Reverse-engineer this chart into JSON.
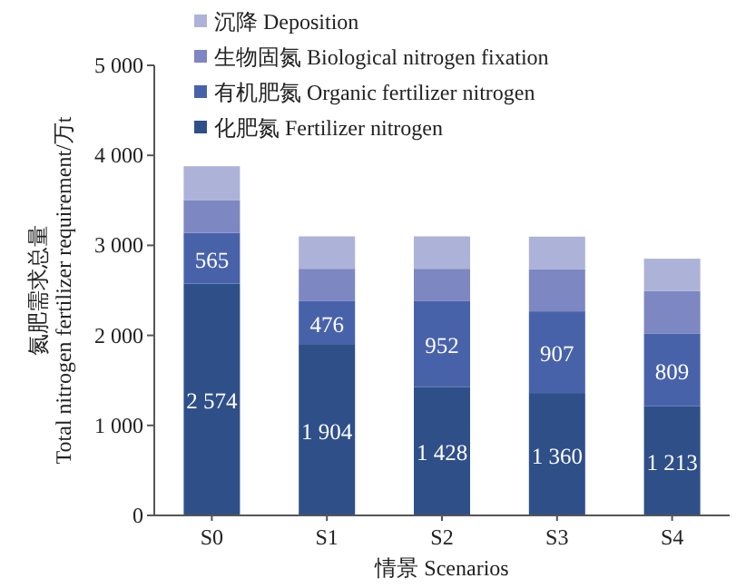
{
  "chart_data": {
    "type": "bar",
    "stacked": true,
    "xlabel": "情景 Scenarios",
    "ylabel": "氮肥需求总量\nTotal nitrogen fertilizer requirement/万t",
    "categories": [
      "S0",
      "S1",
      "S2",
      "S3",
      "S4"
    ],
    "ylim": [
      0,
      5000
    ],
    "yticks": [
      {
        "value": 0,
        "label": "0"
      },
      {
        "value": 1000,
        "label": "1 000"
      },
      {
        "value": 2000,
        "label": "2 000"
      },
      {
        "value": 3000,
        "label": "3 000"
      },
      {
        "value": 4000,
        "label": "4 000"
      },
      {
        "value": 5000,
        "label": "5 000"
      }
    ],
    "legend": "top",
    "grid": false,
    "series": [
      {
        "name": "化肥氮 Fertilizer nitrogen",
        "color": "#2f4f89",
        "values": [
          2574,
          1904,
          1428,
          1360,
          1213
        ],
        "value_labels": [
          "2 574",
          "1 904",
          "1 428",
          "1 360",
          "1 213"
        ]
      },
      {
        "name": "有机肥氮 Organic fertilizer nitrogen",
        "color": "#4862aa",
        "values": [
          565,
          476,
          952,
          907,
          809
        ],
        "value_labels": [
          "565",
          "476",
          "952",
          "907",
          "809"
        ]
      },
      {
        "name": "生物固氮 Biological nitrogen fixation",
        "color": "#7d87c1",
        "values": [
          360,
          360,
          360,
          470,
          470
        ]
      },
      {
        "name": "沉降 Deposition",
        "color": "#adb2d8",
        "values": [
          380,
          360,
          360,
          360,
          360
        ]
      }
    ]
  }
}
